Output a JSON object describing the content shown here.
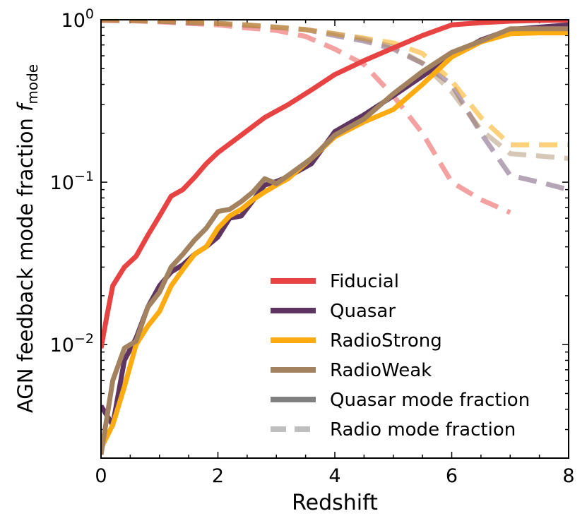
{
  "chart_data": {
    "type": "line",
    "title": "",
    "xlabel": "Redshift",
    "ylabel_main": "AGN feedback mode fraction ",
    "ylabel_var": "f",
    "ylabel_sub": "mode",
    "xlim": [
      0,
      8
    ],
    "ylim": [
      0.002,
      1.0
    ],
    "yscale": "log",
    "x_ticks": [
      {
        "value": 0,
        "label": "0"
      },
      {
        "value": 2,
        "label": "2"
      },
      {
        "value": 4,
        "label": "4"
      },
      {
        "value": 6,
        "label": "6"
      },
      {
        "value": 8,
        "label": "8"
      }
    ],
    "y_ticks": [
      {
        "value": 1,
        "base": "10",
        "exp": "0"
      },
      {
        "value": 0.1,
        "base": "10",
        "exp": "−1"
      },
      {
        "value": 0.01,
        "base": "10",
        "exp": "−2"
      }
    ],
    "series": [
      {
        "name": "Fiducial",
        "role": "quasar",
        "color": "#e84343",
        "dashed": false,
        "opacity": 1.0,
        "x": [
          0,
          0.1,
          0.2,
          0.4,
          0.6,
          0.8,
          1.0,
          1.2,
          1.4,
          1.6,
          1.8,
          2.0,
          2.4,
          2.8,
          3.2,
          3.6,
          4.0,
          4.5,
          5.0,
          5.5,
          6.0,
          6.5,
          7.0,
          7.5,
          8.0
        ],
        "y": [
          0.0095,
          0.015,
          0.023,
          0.03,
          0.035,
          0.047,
          0.062,
          0.082,
          0.09,
          0.107,
          0.13,
          0.152,
          0.195,
          0.25,
          0.3,
          0.37,
          0.46,
          0.56,
          0.67,
          0.8,
          0.93,
          0.96,
          0.98,
          0.99,
          0.995
        ]
      },
      {
        "name": "Quasar",
        "role": "quasar",
        "color": "#5e3560",
        "dashed": false,
        "opacity": 1.0,
        "x": [
          0,
          0.2,
          0.4,
          0.6,
          0.8,
          1.0,
          1.2,
          1.4,
          1.6,
          1.8,
          2.0,
          2.2,
          2.4,
          2.6,
          2.8,
          3.0,
          3.2,
          3.6,
          4.0,
          4.5,
          5.0,
          5.5,
          6.0,
          6.5,
          7.0,
          7.5,
          8.0
        ],
        "y": [
          0.0042,
          0.0032,
          0.008,
          0.011,
          0.017,
          0.023,
          0.028,
          0.031,
          0.036,
          0.04,
          0.046,
          0.06,
          0.062,
          0.077,
          0.096,
          0.101,
          0.108,
          0.13,
          0.205,
          0.26,
          0.34,
          0.45,
          0.6,
          0.75,
          0.87,
          0.9,
          0.93
        ]
      },
      {
        "name": "RadioStrong",
        "role": "quasar",
        "color": "#fcab10",
        "dashed": false,
        "opacity": 1.0,
        "x": [
          0,
          0.2,
          0.4,
          0.6,
          0.8,
          1.0,
          1.2,
          1.4,
          1.6,
          1.8,
          2.0,
          2.2,
          2.4,
          2.6,
          2.8,
          3.0,
          3.2,
          3.6,
          4.0,
          4.5,
          5.0,
          5.5,
          6.0,
          6.5,
          7.0,
          7.5,
          8.0
        ],
        "y": [
          0.0023,
          0.0032,
          0.0055,
          0.01,
          0.013,
          0.016,
          0.023,
          0.029,
          0.036,
          0.04,
          0.052,
          0.062,
          0.068,
          0.078,
          0.087,
          0.096,
          0.105,
          0.14,
          0.19,
          0.235,
          0.28,
          0.4,
          0.59,
          0.73,
          0.82,
          0.83,
          0.83
        ]
      },
      {
        "name": "RadioWeak",
        "role": "quasar",
        "color": "#a38260",
        "dashed": false,
        "opacity": 1.0,
        "x": [
          0,
          0.2,
          0.4,
          0.6,
          0.8,
          1.0,
          1.2,
          1.4,
          1.6,
          1.8,
          2.0,
          2.2,
          2.4,
          2.6,
          2.8,
          3.0,
          3.2,
          3.6,
          4.0,
          4.5,
          5.0,
          5.5,
          6.0,
          6.5,
          7.0,
          7.5,
          8.0
        ],
        "y": [
          0.0021,
          0.006,
          0.0095,
          0.0105,
          0.017,
          0.021,
          0.03,
          0.036,
          0.044,
          0.052,
          0.066,
          0.068,
          0.076,
          0.087,
          0.105,
          0.098,
          0.11,
          0.14,
          0.195,
          0.245,
          0.35,
          0.48,
          0.63,
          0.74,
          0.88,
          0.88,
          0.88
        ]
      },
      {
        "name": "Fiducial radio",
        "role": "radio",
        "color": "#e84343",
        "dashed": true,
        "opacity": 0.5,
        "x": [
          0,
          0.5,
          1.0,
          1.5,
          2.0,
          2.5,
          3.0,
          3.5,
          4.0,
          4.5,
          5.0,
          5.5,
          6.0,
          6.5,
          7.0
        ],
        "y": [
          0.99,
          0.985,
          0.97,
          0.95,
          0.93,
          0.89,
          0.86,
          0.79,
          0.66,
          0.53,
          0.34,
          0.2,
          0.1,
          0.078,
          0.065
        ]
      },
      {
        "name": "Quasar radio",
        "role": "radio",
        "color": "#5e3560",
        "dashed": true,
        "opacity": 0.45,
        "x": [
          0,
          0.5,
          1.0,
          1.5,
          2.0,
          2.5,
          3.0,
          3.5,
          4.0,
          4.5,
          5.0,
          5.5,
          6.0,
          6.5,
          7.0,
          7.5,
          8.0
        ],
        "y": [
          0.998,
          0.99,
          0.98,
          0.96,
          0.95,
          0.925,
          0.9,
          0.87,
          0.8,
          0.74,
          0.66,
          0.54,
          0.4,
          0.2,
          0.11,
          0.1,
          0.09
        ]
      },
      {
        "name": "RadioStrong radio",
        "role": "radio",
        "color": "#fcab10",
        "dashed": true,
        "opacity": 0.55,
        "x": [
          0,
          0.5,
          1.0,
          1.5,
          2.0,
          2.5,
          3.0,
          3.5,
          4.0,
          4.5,
          5.0,
          5.5,
          6.0,
          6.5,
          7.0,
          7.5,
          8.0
        ],
        "y": [
          0.998,
          0.992,
          0.985,
          0.97,
          0.95,
          0.93,
          0.9,
          0.87,
          0.82,
          0.77,
          0.72,
          0.62,
          0.42,
          0.25,
          0.17,
          0.17,
          0.17
        ]
      },
      {
        "name": "RadioWeak radio",
        "role": "radio",
        "color": "#a38260",
        "dashed": true,
        "opacity": 0.45,
        "x": [
          0,
          0.5,
          1.0,
          1.5,
          2.0,
          2.5,
          3.0,
          3.5,
          4.0,
          4.5,
          5.0,
          5.5,
          6.0,
          6.5,
          7.0,
          7.5,
          8.0
        ],
        "y": [
          0.998,
          0.99,
          0.98,
          0.965,
          0.95,
          0.93,
          0.9,
          0.87,
          0.82,
          0.76,
          0.68,
          0.54,
          0.36,
          0.21,
          0.15,
          0.145,
          0.14
        ]
      }
    ],
    "legend": {
      "position": "lower-right",
      "entries": [
        {
          "label": "Fiducial",
          "color": "#e84343",
          "dashed": false,
          "opacity": 1.0
        },
        {
          "label": "Quasar",
          "color": "#5e3560",
          "dashed": false,
          "opacity": 1.0
        },
        {
          "label": "RadioStrong",
          "color": "#fcab10",
          "dashed": false,
          "opacity": 1.0
        },
        {
          "label": "RadioWeak",
          "color": "#a38260",
          "dashed": false,
          "opacity": 1.0
        },
        {
          "label": "Quasar mode fraction",
          "color": "#808080",
          "dashed": false,
          "opacity": 1.0
        },
        {
          "label": "Radio mode fraction",
          "color": "#808080",
          "dashed": true,
          "opacity": 0.5
        }
      ]
    }
  }
}
